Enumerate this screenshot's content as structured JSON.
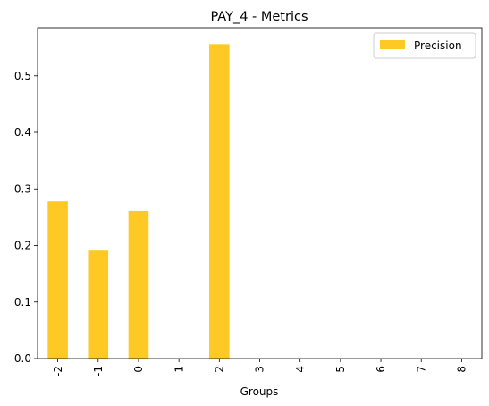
{
  "chart_data": {
    "type": "bar",
    "title": "PAY_4 - Metrics",
    "xlabel": "Groups",
    "ylabel": "",
    "categories": [
      "-2",
      "-1",
      "0",
      "1",
      "2",
      "3",
      "4",
      "5",
      "6",
      "7",
      "8"
    ],
    "series": [
      {
        "name": "Precision",
        "color": "#fec925",
        "values": [
          0.278,
          0.191,
          0.261,
          0,
          0.556,
          0,
          0,
          0,
          0,
          0,
          0
        ]
      }
    ],
    "ylim": [
      0,
      0.585
    ],
    "yticks": [
      "0.0",
      "0.1",
      "0.2",
      "0.3",
      "0.4",
      "0.5"
    ],
    "ytick_values": [
      0,
      0.1,
      0.2,
      0.3,
      0.4,
      0.5
    ],
    "x_tick_rotation": "vertical",
    "grid": false,
    "legend_position": "top-right"
  }
}
